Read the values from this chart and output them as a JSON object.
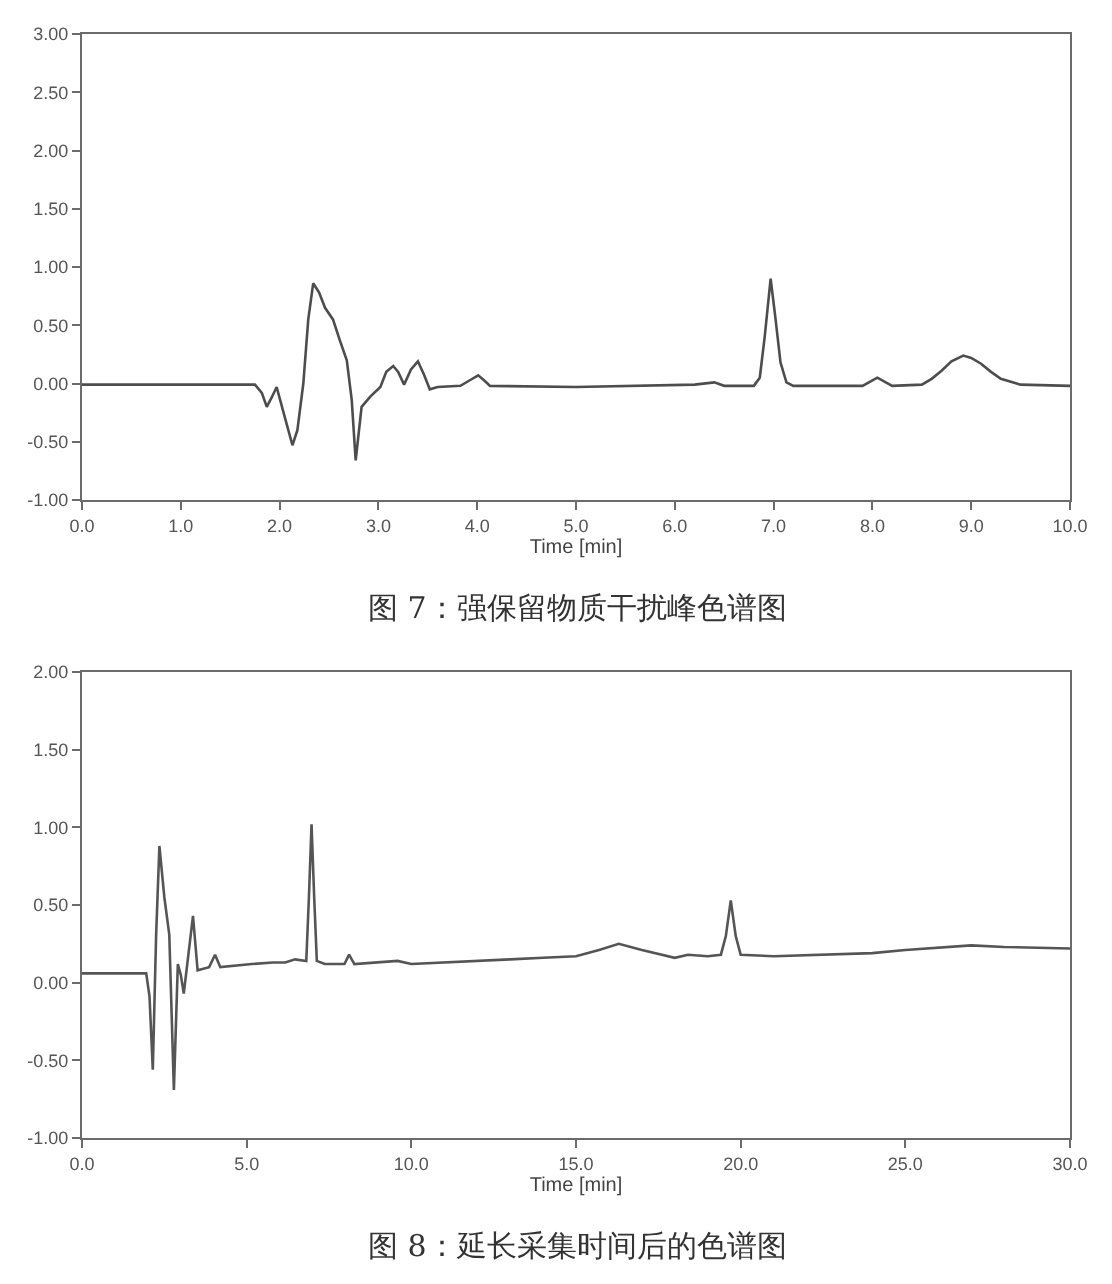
{
  "chart_data": [
    {
      "type": "line",
      "xlabel": "Time [min]",
      "annotations": [
        "图 7：强保留物质干扰峰色谱图"
      ],
      "x": [
        0.0,
        1.0,
        1.75,
        1.82,
        1.87,
        1.92,
        1.97,
        2.04,
        2.13,
        2.18,
        2.24,
        2.29,
        2.34,
        2.4,
        2.46,
        2.54,
        2.61,
        2.68,
        2.73,
        2.77,
        2.83,
        2.92,
        3.02,
        3.08,
        3.15,
        3.2,
        3.26,
        3.33,
        3.4,
        3.46,
        3.52,
        3.6,
        3.83,
        3.93,
        4.01,
        4.08,
        4.13,
        5.0,
        6.2,
        6.4,
        6.5,
        6.8,
        6.86,
        6.91,
        6.97,
        7.02,
        7.07,
        7.13,
        7.2,
        7.9,
        8.05,
        8.2,
        8.5,
        8.6,
        8.7,
        8.8,
        8.92,
        9.0,
        9.1,
        9.2,
        9.3,
        9.5,
        10.0
      ],
      "series": [
        {
          "color": "#4d4d4d",
          "values": [
            -0.01,
            -0.01,
            -0.01,
            -0.08,
            -0.2,
            -0.12,
            -0.03,
            -0.25,
            -0.53,
            -0.4,
            0.0,
            0.55,
            0.86,
            0.78,
            0.65,
            0.55,
            0.37,
            0.2,
            -0.14,
            -0.66,
            -0.2,
            -0.11,
            -0.03,
            0.1,
            0.15,
            0.1,
            -0.01,
            0.12,
            0.19,
            0.08,
            -0.05,
            -0.03,
            -0.02,
            0.03,
            0.07,
            0.02,
            -0.02,
            -0.03,
            -0.01,
            0.01,
            -0.02,
            -0.02,
            0.05,
            0.4,
            0.9,
            0.55,
            0.18,
            0.01,
            -0.02,
            -0.02,
            0.05,
            -0.02,
            -0.01,
            0.04,
            0.11,
            0.19,
            0.24,
            0.22,
            0.17,
            0.1,
            0.04,
            -0.01,
            -0.02
          ]
        }
      ],
      "xlim": [
        0,
        10
      ],
      "xticks": [
        {
          "value": 0,
          "label": "0.0"
        },
        {
          "value": 1,
          "label": "1.0"
        },
        {
          "value": 2,
          "label": "2.0"
        },
        {
          "value": 3,
          "label": "3.0"
        },
        {
          "value": 4,
          "label": "4.0"
        },
        {
          "value": 5,
          "label": "5.0"
        },
        {
          "value": 6,
          "label": "6.0"
        },
        {
          "value": 7,
          "label": "7.0"
        },
        {
          "value": 8,
          "label": "8.0"
        },
        {
          "value": 9,
          "label": "9.0"
        },
        {
          "value": 10,
          "label": "10.0"
        }
      ],
      "ylim": [
        -1,
        3
      ],
      "yticks": [
        {
          "value": -1,
          "label": "-1.00"
        },
        {
          "value": -0.5,
          "label": "-0.50"
        },
        {
          "value": 0,
          "label": "0.00"
        },
        {
          "value": 0.5,
          "label": "0.50"
        },
        {
          "value": 1,
          "label": "1.00"
        },
        {
          "value": 1.5,
          "label": "1.50"
        },
        {
          "value": 2,
          "label": "2.00"
        },
        {
          "value": 2.5,
          "label": "2.50"
        },
        {
          "value": 3,
          "label": "3.00"
        }
      ]
    },
    {
      "type": "line",
      "xlabel": "Time [min]",
      "annotations": [
        "图 8：延长采集时间后的色谱图"
      ],
      "x": [
        0.0,
        1.95,
        2.05,
        2.15,
        2.25,
        2.35,
        2.5,
        2.65,
        2.79,
        2.91,
        3.0,
        3.09,
        3.37,
        3.51,
        3.86,
        4.04,
        4.2,
        5.16,
        5.8,
        6.17,
        6.47,
        6.81,
        6.89,
        6.97,
        7.05,
        7.13,
        7.37,
        7.97,
        8.11,
        8.27,
        9.58,
        10.0,
        13.0,
        14.0,
        15.0,
        15.7,
        16.3,
        17.0,
        18.0,
        18.4,
        19.0,
        19.4,
        19.55,
        19.7,
        19.85,
        20.0,
        21.0,
        24.0,
        25.0,
        27.0,
        28.0,
        30.0
      ],
      "series": [
        {
          "color": "#555555",
          "values": [
            0.06,
            0.06,
            -0.09,
            -0.56,
            0.3,
            0.88,
            0.55,
            0.31,
            -0.69,
            0.12,
            0.05,
            -0.07,
            0.43,
            0.08,
            0.1,
            0.18,
            0.1,
            0.12,
            0.13,
            0.13,
            0.15,
            0.14,
            0.55,
            1.02,
            0.55,
            0.14,
            0.12,
            0.12,
            0.18,
            0.12,
            0.14,
            0.12,
            0.15,
            0.16,
            0.17,
            0.21,
            0.25,
            0.21,
            0.16,
            0.18,
            0.17,
            0.18,
            0.3,
            0.53,
            0.3,
            0.18,
            0.17,
            0.19,
            0.21,
            0.24,
            0.23,
            0.22
          ]
        }
      ],
      "xlim": [
        0,
        30
      ],
      "xticks": [
        {
          "value": 0,
          "label": "0.0"
        },
        {
          "value": 5,
          "label": "5.0"
        },
        {
          "value": 10,
          "label": "10.0"
        },
        {
          "value": 15,
          "label": "15.0"
        },
        {
          "value": 20,
          "label": "20.0"
        },
        {
          "value": 25,
          "label": "25.0"
        },
        {
          "value": 30,
          "label": "30.0"
        }
      ],
      "ylim": [
        -1,
        2
      ],
      "yticks": [
        {
          "value": -1,
          "label": "-1.00"
        },
        {
          "value": -0.5,
          "label": "-0.50"
        },
        {
          "value": 0,
          "label": "0.00"
        },
        {
          "value": 0.5,
          "label": "0.50"
        },
        {
          "value": 1,
          "label": "1.00"
        },
        {
          "value": 1.5,
          "label": "1.50"
        },
        {
          "value": 2,
          "label": "2.00"
        }
      ]
    }
  ]
}
